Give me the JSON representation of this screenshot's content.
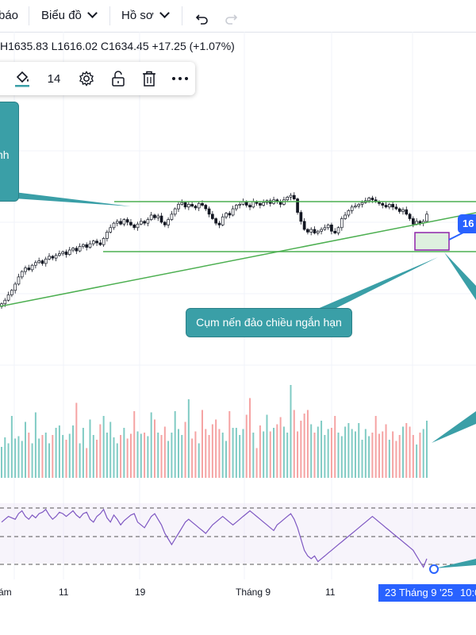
{
  "header": {
    "menu_partial": "báo",
    "chart_menu": "Biểu đồ",
    "profile_menu": "Hồ sơ",
    "undo_icon": "undo-icon",
    "redo_icon": "redo-icon"
  },
  "ohlc": {
    "high": "H1635.83",
    "low": "L1616.02",
    "close": "C1634.45",
    "change": "+17.25 (+1.07%)"
  },
  "drawing_toolbar": {
    "font_size": "14",
    "icons": [
      "paint-bucket-icon",
      "gear-icon",
      "unlock-icon",
      "trash-icon",
      "more-icon"
    ]
  },
  "annotations": {
    "left_callout": "nh",
    "mid_callout": "Cụm nến đảo chiều ngắn hạn",
    "price_badge": "16"
  },
  "x_axis": {
    "labels": [
      "ám",
      "11",
      "19",
      "Tháng 9",
      "11"
    ],
    "selected_date": "23 Tháng 9 '25",
    "selected_time": "10:0"
  },
  "colors": {
    "up": "#26a69a",
    "down": "#ef5350",
    "vol_up": "#80cbc4",
    "vol_down": "#f5a3a3",
    "line_green": "#4caf50",
    "rsi": "#7e57c2",
    "callout": "#3a9fa7",
    "accent": "#2962ff"
  },
  "chart_data": {
    "type": "candlestick",
    "close": [
      1530,
      1534,
      1540,
      1545,
      1552,
      1560,
      1566,
      1570,
      1568,
      1573,
      1576,
      1578,
      1575,
      1580,
      1583,
      1581,
      1584,
      1586,
      1588,
      1585,
      1590,
      1592,
      1589,
      1594,
      1596,
      1593,
      1597,
      1600,
      1598,
      1596,
      1603,
      1610,
      1615,
      1620,
      1622,
      1619,
      1624,
      1621,
      1618,
      1615,
      1619,
      1622,
      1620,
      1624,
      1629,
      1626,
      1628,
      1621,
      1618,
      1624,
      1630,
      1636,
      1641,
      1643,
      1638,
      1641,
      1639,
      1637,
      1642,
      1640,
      1636,
      1630,
      1625,
      1620,
      1618,
      1627,
      1631,
      1629,
      1636,
      1640,
      1641,
      1644,
      1640,
      1638,
      1644,
      1642,
      1640,
      1643,
      1645,
      1642,
      1646,
      1644,
      1641,
      1646,
      1649,
      1651,
      1647,
      1632,
      1622,
      1613,
      1610,
      1613,
      1609,
      1611,
      1613,
      1615,
      1618,
      1611,
      1609,
      1615,
      1625,
      1629,
      1634,
      1638,
      1639,
      1641,
      1643,
      1645,
      1648,
      1646,
      1644,
      1642,
      1640,
      1638,
      1641,
      1638,
      1636,
      1633,
      1635,
      1630,
      1625,
      1619,
      1622,
      1620,
      1622,
      1630
    ],
    "volume": [
      0.26,
      0.34,
      0.29,
      0.52,
      0.33,
      0.35,
      0.31,
      0.47,
      0.38,
      0.29,
      0.55,
      0.33,
      0.36,
      0.38,
      0.29,
      0.36,
      0.42,
      0.44,
      0.36,
      0.32,
      0.37,
      0.44,
      0.63,
      0.29,
      0.42,
      0.25,
      0.49,
      0.36,
      0.32,
      0.45,
      0.52,
      0.38,
      0.47,
      0.34,
      0.29,
      0.36,
      0.42,
      0.33,
      0.37,
      0.56,
      0.39,
      0.37,
      0.38,
      0.35,
      0.55,
      0.49,
      0.38,
      0.36,
      0.43,
      0.31,
      0.38,
      0.56,
      0.41,
      0.36,
      0.47,
      0.66,
      0.33,
      0.39,
      0.29,
      0.57,
      0.41,
      0.36,
      0.45,
      0.49,
      0.41,
      0.38,
      0.31,
      0.56,
      0.42,
      0.42,
      0.36,
      0.41,
      0.53,
      0.67,
      0.38,
      0.25,
      0.44,
      0.39,
      0.53,
      0.39,
      0.42,
      0.45,
      0.51,
      0.43,
      0.38,
      0.78,
      0.57,
      0.39,
      0.48,
      0.54,
      0.57,
      0.45,
      0.38,
      0.43,
      0.48,
      0.36,
      0.41,
      0.42,
      0.52,
      0.38,
      0.35,
      0.43,
      0.46,
      0.41,
      0.39,
      0.46,
      0.32,
      0.41,
      0.35,
      0.38,
      0.52,
      0.37,
      0.39,
      0.45,
      0.32,
      0.39,
      0.31,
      0.36,
      0.43,
      0.46,
      0.43,
      0.36,
      0.28,
      0.38,
      0.41,
      0.48
    ],
    "rsi": [
      60,
      62,
      64,
      63,
      62,
      66,
      68,
      64,
      62,
      65,
      63,
      66,
      67,
      69,
      65,
      62,
      64,
      67,
      66,
      64,
      66,
      68,
      65,
      63,
      66,
      67,
      62,
      60,
      64,
      66,
      69,
      63,
      60,
      65,
      62,
      58,
      61,
      63,
      65,
      66,
      60,
      58,
      56,
      60,
      64,
      66,
      62,
      58,
      52,
      48,
      44,
      48,
      52,
      56,
      60,
      62,
      60,
      58,
      56,
      54,
      52,
      55,
      58,
      60,
      62,
      64,
      62,
      60,
      58,
      60,
      62,
      64,
      66,
      68,
      66,
      64,
      62,
      60,
      58,
      56,
      54,
      58,
      60,
      62,
      64,
      66,
      62,
      56,
      48,
      40,
      36,
      34,
      36,
      32,
      34,
      36,
      38,
      40,
      42,
      44,
      46,
      48,
      50,
      52,
      54,
      56,
      58,
      60,
      62,
      64,
      62,
      60,
      58,
      56,
      54,
      52,
      50,
      48,
      46,
      44,
      42,
      40,
      36,
      32,
      28,
      34
    ]
  }
}
